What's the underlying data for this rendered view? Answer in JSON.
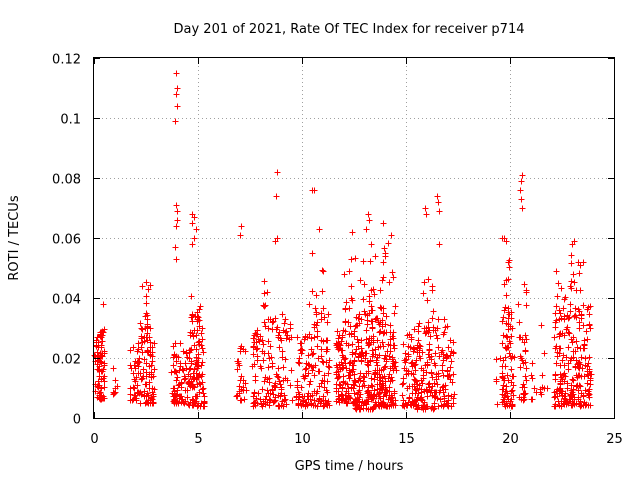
{
  "chart_data": {
    "type": "scatter",
    "title": "Day 201 of 2021, Rate Of TEC Index for receiver p714",
    "xlabel": "GPS time / hours",
    "ylabel": "ROTI / TECUs",
    "xlim": [
      0,
      25
    ],
    "ylim": [
      0,
      0.12
    ],
    "grid": true,
    "marker": "plus",
    "color": "#ff0000",
    "x_ticks": [
      {
        "value": 0,
        "label": "0"
      },
      {
        "value": 5,
        "label": "5"
      },
      {
        "value": 10,
        "label": "10"
      },
      {
        "value": 15,
        "label": "15"
      },
      {
        "value": 20,
        "label": "20"
      },
      {
        "value": 25,
        "label": "25"
      }
    ],
    "y_ticks": [
      {
        "value": 0,
        "label": "0"
      },
      {
        "value": 0.02,
        "label": "0.02"
      },
      {
        "value": 0.04,
        "label": "0.04"
      },
      {
        "value": 0.06,
        "label": "0.06"
      },
      {
        "value": 0.08,
        "label": "0.08"
      },
      {
        "value": 0.1,
        "label": "0.1"
      },
      {
        "value": 0.12,
        "label": "0.12"
      }
    ],
    "clusters": [
      {
        "x_start": 0.0,
        "x_end": 0.5,
        "y_min": 0.006,
        "y_max": 0.03,
        "count": 70
      },
      {
        "x_start": 0.2,
        "x_end": 0.5,
        "y_min": 0.02,
        "y_max": 0.039,
        "count": 10
      },
      {
        "x_start": 0.9,
        "x_end": 1.1,
        "y_min": 0.008,
        "y_max": 0.02,
        "count": 8
      },
      {
        "x_start": 1.7,
        "x_end": 2.1,
        "y_min": 0.006,
        "y_max": 0.025,
        "count": 30
      },
      {
        "x_start": 2.1,
        "x_end": 2.9,
        "y_min": 0.005,
        "y_max": 0.032,
        "count": 90
      },
      {
        "x_start": 2.3,
        "x_end": 2.7,
        "y_min": 0.03,
        "y_max": 0.046,
        "count": 12
      },
      {
        "x_start": 3.7,
        "x_end": 4.5,
        "y_min": 0.005,
        "y_max": 0.025,
        "count": 70
      },
      {
        "x_start": 4.5,
        "x_end": 5.3,
        "y_min": 0.004,
        "y_max": 0.034,
        "count": 110
      },
      {
        "x_start": 4.6,
        "x_end": 5.1,
        "y_min": 0.034,
        "y_max": 0.045,
        "count": 8
      },
      {
        "x_start": 6.7,
        "x_end": 7.3,
        "y_min": 0.006,
        "y_max": 0.025,
        "count": 30
      },
      {
        "x_start": 7.6,
        "x_end": 8.5,
        "y_min": 0.004,
        "y_max": 0.03,
        "count": 70
      },
      {
        "x_start": 8.1,
        "x_end": 8.5,
        "y_min": 0.03,
        "y_max": 0.047,
        "count": 10
      },
      {
        "x_start": 8.5,
        "x_end": 9.5,
        "y_min": 0.004,
        "y_max": 0.035,
        "count": 70
      },
      {
        "x_start": 9.7,
        "x_end": 10.5,
        "y_min": 0.004,
        "y_max": 0.028,
        "count": 70
      },
      {
        "x_start": 10.5,
        "x_end": 11.3,
        "y_min": 0.004,
        "y_max": 0.035,
        "count": 70
      },
      {
        "x_start": 10.3,
        "x_end": 11.0,
        "y_min": 0.035,
        "y_max": 0.055,
        "count": 8
      },
      {
        "x_start": 11.6,
        "x_end": 12.5,
        "y_min": 0.005,
        "y_max": 0.03,
        "count": 110
      },
      {
        "x_start": 12.0,
        "x_end": 12.6,
        "y_min": 0.03,
        "y_max": 0.057,
        "count": 18
      },
      {
        "x_start": 12.5,
        "x_end": 13.5,
        "y_min": 0.003,
        "y_max": 0.035,
        "count": 150
      },
      {
        "x_start": 12.8,
        "x_end": 13.5,
        "y_min": 0.035,
        "y_max": 0.056,
        "count": 15
      },
      {
        "x_start": 13.5,
        "x_end": 14.5,
        "y_min": 0.004,
        "y_max": 0.038,
        "count": 150
      },
      {
        "x_start": 13.7,
        "x_end": 14.4,
        "y_min": 0.038,
        "y_max": 0.06,
        "count": 10
      },
      {
        "x_start": 14.8,
        "x_end": 15.5,
        "y_min": 0.004,
        "y_max": 0.03,
        "count": 70
      },
      {
        "x_start": 15.5,
        "x_end": 16.5,
        "y_min": 0.003,
        "y_max": 0.032,
        "count": 110
      },
      {
        "x_start": 15.8,
        "x_end": 16.3,
        "y_min": 0.032,
        "y_max": 0.048,
        "count": 8
      },
      {
        "x_start": 16.5,
        "x_end": 17.3,
        "y_min": 0.004,
        "y_max": 0.033,
        "count": 70
      },
      {
        "x_start": 19.3,
        "x_end": 19.7,
        "y_min": 0.004,
        "y_max": 0.02,
        "count": 10
      },
      {
        "x_start": 19.6,
        "x_end": 20.2,
        "y_min": 0.004,
        "y_max": 0.035,
        "count": 70
      },
      {
        "x_start": 19.6,
        "x_end": 20.1,
        "y_min": 0.035,
        "y_max": 0.055,
        "count": 12
      },
      {
        "x_start": 20.4,
        "x_end": 20.8,
        "y_min": 0.006,
        "y_max": 0.03,
        "count": 30
      },
      {
        "x_start": 20.4,
        "x_end": 20.8,
        "y_min": 0.03,
        "y_max": 0.047,
        "count": 6
      },
      {
        "x_start": 21.0,
        "x_end": 21.3,
        "y_min": 0.006,
        "y_max": 0.02,
        "count": 8
      },
      {
        "x_start": 21.4,
        "x_end": 21.8,
        "y_min": 0.008,
        "y_max": 0.022,
        "count": 8
      },
      {
        "x_start": 22.1,
        "x_end": 23.0,
        "y_min": 0.004,
        "y_max": 0.035,
        "count": 110
      },
      {
        "x_start": 22.2,
        "x_end": 22.9,
        "y_min": 0.035,
        "y_max": 0.05,
        "count": 12
      },
      {
        "x_start": 23.0,
        "x_end": 23.9,
        "y_min": 0.004,
        "y_max": 0.038,
        "count": 110
      },
      {
        "x_start": 22.8,
        "x_end": 23.4,
        "y_min": 0.038,
        "y_max": 0.058,
        "count": 12
      }
    ],
    "points": [
      [
        3.95,
        0.115
      ],
      [
        4.0,
        0.11
      ],
      [
        3.95,
        0.108
      ],
      [
        4.0,
        0.104
      ],
      [
        3.9,
        0.099
      ],
      [
        3.95,
        0.071
      ],
      [
        4.0,
        0.069
      ],
      [
        4.0,
        0.066
      ],
      [
        3.95,
        0.064
      ],
      [
        3.9,
        0.057
      ],
      [
        3.95,
        0.053
      ],
      [
        4.7,
        0.068
      ],
      [
        4.8,
        0.067
      ],
      [
        4.7,
        0.065
      ],
      [
        4.9,
        0.063
      ],
      [
        4.8,
        0.06
      ],
      [
        4.7,
        0.058
      ],
      [
        8.8,
        0.082
      ],
      [
        8.75,
        0.074
      ],
      [
        8.7,
        0.059
      ],
      [
        8.8,
        0.06
      ],
      [
        7.05,
        0.064
      ],
      [
        7.0,
        0.061
      ],
      [
        10.5,
        0.076
      ],
      [
        10.6,
        0.076
      ],
      [
        10.8,
        0.063
      ],
      [
        10.5,
        0.055
      ],
      [
        11.0,
        0.049
      ],
      [
        13.15,
        0.068
      ],
      [
        13.2,
        0.066
      ],
      [
        13.1,
        0.063
      ],
      [
        13.3,
        0.058
      ],
      [
        13.9,
        0.065
      ],
      [
        14.3,
        0.061
      ],
      [
        14.0,
        0.055
      ],
      [
        12.4,
        0.062
      ],
      [
        15.9,
        0.07
      ],
      [
        15.95,
        0.068
      ],
      [
        16.5,
        0.074
      ],
      [
        16.55,
        0.072
      ],
      [
        16.6,
        0.069
      ],
      [
        16.6,
        0.058
      ],
      [
        19.7,
        0.06
      ],
      [
        19.8,
        0.059
      ],
      [
        19.6,
        0.06
      ],
      [
        20.6,
        0.081
      ],
      [
        20.55,
        0.079
      ],
      [
        20.5,
        0.076
      ],
      [
        20.55,
        0.073
      ],
      [
        20.6,
        0.07
      ],
      [
        23.1,
        0.059
      ],
      [
        23.0,
        0.058
      ],
      [
        23.5,
        0.052
      ],
      [
        21.5,
        0.031
      ]
    ]
  }
}
